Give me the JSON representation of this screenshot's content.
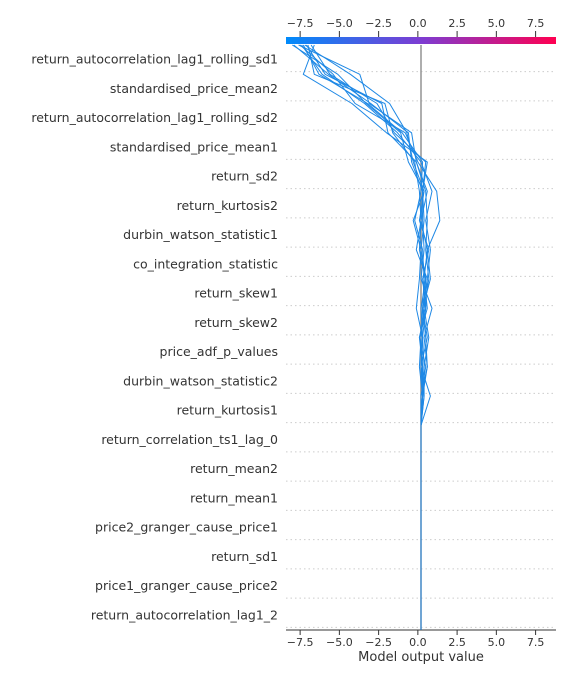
{
  "chart_data": {
    "type": "line",
    "title": "",
    "xlabel": "Model output value",
    "ylabel": "",
    "xlim": [
      -8.4,
      8.8
    ],
    "xticks": [
      -7.5,
      -5.0,
      -2.5,
      0.0,
      2.5,
      5.0,
      7.5
    ],
    "xtick_labels": [
      "−7.5",
      "−5.0",
      "−2.5",
      "0.0",
      "2.5",
      "5.0",
      "7.5"
    ],
    "base_value": 0.2,
    "colorbar": {
      "from": "#008bfb",
      "mid": "#7d3cd2",
      "to": "#ff0051"
    },
    "line_color": "#1e88e5",
    "grid": "dotted horizontal",
    "features": [
      "return_autocorrelation_lag1_rolling_sd1",
      "standardised_price_mean2",
      "return_autocorrelation_lag1_rolling_sd2",
      "standardised_price_mean1",
      "return_sd2",
      "return_kurtosis2",
      "durbin_watson_statistic1",
      "co_integration_statistic",
      "return_skew1",
      "return_skew2",
      "price_adf_p_values",
      "durbin_watson_statistic2",
      "return_kurtosis1",
      "return_correlation_ts1_lag_0",
      "return_mean2",
      "return_mean1",
      "price2_granger_cause_price1",
      "return_sd1",
      "price1_granger_cause_price2",
      "return_autocorrelation_lag1_2"
    ],
    "series": [
      {
        "values": [
          -7.4,
          -6.1,
          -3.4,
          -1.3,
          0.2,
          0.9,
          0.5,
          0.8,
          0.6,
          0.5,
          0.3,
          0.4,
          0.3,
          0.2,
          0.2,
          0.2,
          0.2,
          0.2,
          0.2,
          0.2,
          0.2
        ]
      },
      {
        "values": [
          -7.9,
          -5.7,
          -3.0,
          -0.6,
          -0.4,
          0.3,
          0.4,
          0.2,
          0.5,
          0.4,
          0.2,
          0.1,
          0.3,
          0.2,
          0.2,
          0.2,
          0.2,
          0.2,
          0.2,
          0.2,
          0.2
        ]
      },
      {
        "values": [
          -6.6,
          -7.3,
          -4.2,
          -2.0,
          0.6,
          0.3,
          0.2,
          0.6,
          0.8,
          0.3,
          0.6,
          0.2,
          0.8,
          0.2,
          0.2,
          0.2,
          0.2,
          0.2,
          0.2,
          0.2,
          0.2
        ]
      },
      {
        "values": [
          -7.0,
          -6.6,
          -2.1,
          -1.6,
          -0.2,
          0.1,
          0.2,
          -0.1,
          0.6,
          0.3,
          0.5,
          0.6,
          0.3,
          0.2,
          0.2,
          0.2,
          0.2,
          0.2,
          0.2,
          0.2,
          0.2
        ]
      },
      {
        "values": [
          -7.5,
          -5.4,
          -4.0,
          -0.8,
          0.0,
          1.2,
          1.4,
          0.6,
          0.4,
          0.3,
          0.2,
          0.3,
          0.3,
          0.2,
          0.2,
          0.2,
          0.2,
          0.2,
          0.2,
          0.2,
          0.2
        ]
      },
      {
        "values": [
          -8.0,
          -5.1,
          -3.3,
          -1.1,
          -0.6,
          0.4,
          -0.3,
          0.2,
          0.1,
          -0.1,
          0.3,
          0.2,
          0.4,
          0.2,
          0.2,
          0.2,
          0.2,
          0.2,
          0.2,
          0.2,
          0.2
        ]
      },
      {
        "values": [
          -7.2,
          -4.3,
          -1.8,
          -0.7,
          -0.3,
          0.4,
          0.1,
          0.7,
          0.3,
          0.5,
          0.1,
          0.3,
          0.3,
          0.2,
          0.2,
          0.2,
          0.2,
          0.2,
          0.2,
          0.2,
          0.2
        ]
      },
      {
        "values": [
          -6.8,
          -5.6,
          -2.6,
          -1.5,
          0.5,
          0.3,
          0.3,
          0.4,
          0.2,
          0.9,
          0.4,
          0.6,
          0.2,
          0.2,
          0.2,
          0.2,
          0.2,
          0.2,
          0.2,
          0.2,
          0.2
        ]
      },
      {
        "values": [
          -7.6,
          -3.7,
          -3.1,
          -0.4,
          -0.1,
          0.6,
          0.2,
          0.1,
          0.5,
          0.2,
          0.3,
          0.2,
          0.3,
          0.2,
          0.2,
          0.2,
          0.2,
          0.2,
          0.2,
          0.2,
          0.2
        ]
      },
      {
        "values": [
          -7.1,
          -5.9,
          -2.3,
          -1.9,
          -0.1,
          0.5,
          0.6,
          0.5,
          0.7,
          0.4,
          0.7,
          0.4,
          0.4,
          0.2,
          0.2,
          0.2,
          0.2,
          0.2,
          0.2,
          0.2,
          0.2
        ]
      },
      {
        "values": [
          -7.3,
          -6.3,
          -3.2,
          -1.0,
          0.3,
          0.2,
          -0.2,
          0.3,
          0.4,
          0.6,
          0.1,
          0.5,
          0.2,
          0.2,
          0.2,
          0.2,
          0.2,
          0.2,
          0.2,
          0.2,
          0.2
        ]
      }
    ]
  }
}
